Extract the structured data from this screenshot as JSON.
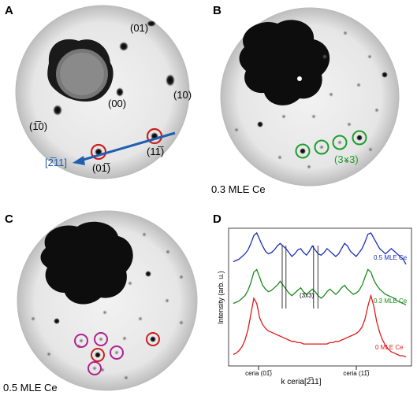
{
  "panels": {
    "A": {
      "letter": "A",
      "spot_labels": {
        "l01": "(01)",
        "l10": "(10)",
        "l00": "(00)",
        "lm10": "(1̅0)",
        "l0m1": "(01̅)",
        "l1m1": "(11̅)",
        "direction": "[2̅11]"
      },
      "arrow_color": "#1f5fb0",
      "ring_color": "#cc1f1f"
    },
    "B": {
      "letter": "B",
      "caption": "0.3 MLE Ce",
      "superstructure_label": "(3×3)",
      "ring_color": "#1e9e2e"
    },
    "C": {
      "letter": "C",
      "caption": "0.5 MLE Ce",
      "ring_colors": [
        "#b0208f",
        "#cc1f1f"
      ]
    },
    "D": {
      "letter": "D",
      "ylabel": "Intensity (arb. u.)",
      "xlabel": "k ceria[2̅11]",
      "tick_labels": [
        "ceria (01̅)",
        "ceria (11̅)"
      ],
      "annotation": "(3x3)",
      "series_labels": [
        "0.5 MLE Ce",
        "0.3 MLE Ce",
        "0 MLE Ce"
      ],
      "series_colors": [
        "#1a2fb5",
        "#1a8a1a",
        "#e01a1a"
      ]
    }
  },
  "chart_data": {
    "type": "line",
    "title": "",
    "xlabel": "k ceria[2̅11]",
    "ylabel": "Intensity (arb. u.)",
    "x_ticks": [
      "ceria (01̅)",
      "ceria (11̅)"
    ],
    "annotation": "(3x3)",
    "series": [
      {
        "name": "0.5 MLE Ce",
        "color": "#1a2fb5",
        "values": [
          0.78,
          0.79,
          0.8,
          0.82,
          0.84,
          0.87,
          0.92,
          0.98,
          1.0,
          0.95,
          0.9,
          0.86,
          0.84,
          0.85,
          0.87,
          0.9,
          0.92,
          0.9,
          0.88,
          0.85,
          0.82,
          0.84,
          0.87,
          0.88,
          0.85,
          0.83,
          0.86,
          0.9,
          0.87,
          0.84,
          0.83,
          0.85,
          0.88,
          0.86,
          0.84,
          0.82,
          0.84,
          0.88,
          0.92,
          0.9,
          0.86,
          0.84,
          0.82,
          0.85,
          0.88,
          0.93,
          0.99,
          1.0,
          0.96,
          0.92,
          0.88,
          0.86,
          0.84,
          0.86,
          0.88,
          0.86,
          0.84,
          0.82,
          0.8,
          0.76
        ]
      },
      {
        "name": "0.3 MLE Ce",
        "color": "#1a8a1a",
        "values": [
          0.46,
          0.47,
          0.48,
          0.5,
          0.52,
          0.56,
          0.62,
          0.7,
          0.72,
          0.66,
          0.6,
          0.57,
          0.55,
          0.56,
          0.58,
          0.6,
          0.63,
          0.6,
          0.57,
          0.54,
          0.52,
          0.54,
          0.56,
          0.58,
          0.55,
          0.53,
          0.55,
          0.57,
          0.55,
          0.52,
          0.5,
          0.52,
          0.55,
          0.57,
          0.55,
          0.53,
          0.55,
          0.58,
          0.6,
          0.57,
          0.55,
          0.53,
          0.54,
          0.56,
          0.6,
          0.66,
          0.72,
          0.7,
          0.64,
          0.6,
          0.57,
          0.55,
          0.53,
          0.52,
          0.51,
          0.5,
          0.48,
          0.47,
          0.46,
          0.45
        ]
      },
      {
        "name": "0 MLE Ce",
        "color": "#e01a1a",
        "values": [
          0.07,
          0.08,
          0.1,
          0.13,
          0.18,
          0.26,
          0.38,
          0.5,
          0.46,
          0.35,
          0.3,
          0.27,
          0.25,
          0.24,
          0.23,
          0.22,
          0.21,
          0.2,
          0.19,
          0.18,
          0.17,
          0.17,
          0.16,
          0.16,
          0.15,
          0.15,
          0.15,
          0.15,
          0.15,
          0.15,
          0.15,
          0.15,
          0.15,
          0.16,
          0.16,
          0.17,
          0.17,
          0.18,
          0.19,
          0.2,
          0.21,
          0.22,
          0.23,
          0.25,
          0.28,
          0.34,
          0.44,
          0.52,
          0.44,
          0.32,
          0.24,
          0.18,
          0.14,
          0.11,
          0.09,
          0.08,
          0.07,
          0.06,
          0.06,
          0.05
        ]
      }
    ],
    "vertical_marker_fractions": [
      0.283,
      0.305,
      0.465,
      0.49
    ],
    "grid": false,
    "legend": "inline-right"
  }
}
